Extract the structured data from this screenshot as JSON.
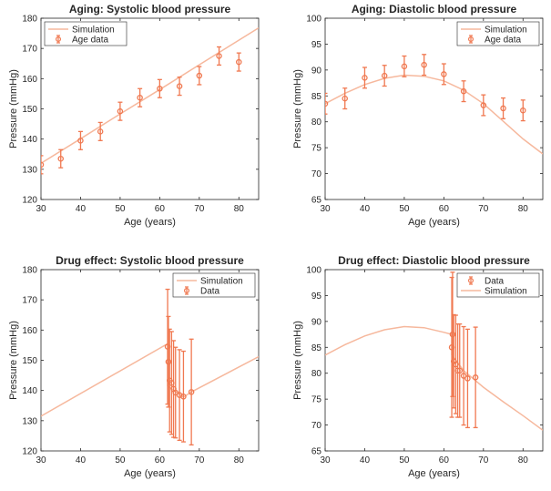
{
  "colors": {
    "simulation": "#f6b89d",
    "data": "#f07850",
    "axis": "#262626",
    "legend_border": "#262626"
  },
  "chart_data": [
    {
      "type": "line",
      "title": "Aging: Systolic blood pressure",
      "xlabel": "Age (years)",
      "ylabel": "Pressure (mmHg)",
      "xlim": [
        30,
        85
      ],
      "ylim": [
        120,
        180
      ],
      "xticks": [
        30,
        40,
        50,
        60,
        70,
        80
      ],
      "yticks": [
        120,
        130,
        140,
        150,
        160,
        170,
        180
      ],
      "grid": false,
      "legend": {
        "position": "top-left",
        "entries": [
          "Simulation",
          "Age data"
        ]
      },
      "simulation": {
        "name": "Simulation",
        "x": [
          30,
          40,
          50,
          60,
          70,
          85
        ],
        "y": [
          132,
          140.1,
          148.3,
          156.4,
          164.6,
          176.8
        ]
      },
      "data": {
        "name": "Age data",
        "x": [
          30,
          35,
          40,
          45,
          50,
          55,
          60,
          65,
          70,
          75,
          80
        ],
        "y": [
          131.5,
          133.5,
          139.5,
          142.5,
          149.2,
          153.7,
          156.7,
          157.5,
          161,
          167.5,
          165.5
        ],
        "err": [
          3,
          3,
          3,
          3,
          3,
          3,
          3,
          3,
          3,
          3,
          3
        ]
      }
    },
    {
      "type": "line",
      "title": "Aging: Diastolic blood pressure",
      "xlabel": "Age (years)",
      "ylabel": "Pressure (mmHg)",
      "xlim": [
        30,
        85
      ],
      "ylim": [
        65,
        100
      ],
      "xticks": [
        30,
        40,
        50,
        60,
        70,
        80
      ],
      "yticks": [
        65,
        70,
        75,
        80,
        85,
        90,
        95,
        100
      ],
      "grid": false,
      "legend": {
        "position": "top-right",
        "entries": [
          "Simulation",
          "Age data"
        ]
      },
      "simulation": {
        "name": "Simulation",
        "x": [
          30,
          35,
          40,
          45,
          50,
          55,
          60,
          65,
          70,
          75,
          80,
          85
        ],
        "y": [
          83.5,
          85.5,
          87.2,
          88.4,
          89,
          88.8,
          87.9,
          86.1,
          83.5,
          80.1,
          76.7,
          73.8
        ]
      },
      "data": {
        "name": "Age data",
        "x": [
          30,
          35,
          40,
          45,
          50,
          55,
          60,
          65,
          70,
          75,
          80
        ],
        "y": [
          83.5,
          84.5,
          88.5,
          88.9,
          90.7,
          91,
          89.2,
          85.9,
          83.2,
          82.6,
          82.2
        ],
        "err": [
          2,
          2,
          2,
          2,
          2,
          2,
          2,
          2,
          2,
          2,
          2
        ]
      }
    },
    {
      "type": "line",
      "title": "Drug effect: Systolic blood pressure",
      "xlabel": "Age (years)",
      "ylabel": "Pressure (mmHg)",
      "xlim": [
        30,
        85
      ],
      "ylim": [
        120,
        180
      ],
      "xticks": [
        30,
        40,
        50,
        60,
        70,
        80
      ],
      "yticks": [
        120,
        130,
        140,
        150,
        160,
        170,
        180
      ],
      "grid": false,
      "legend": {
        "position": "top-right",
        "entries": [
          "Simulation",
          "Data"
        ]
      },
      "simulation": {
        "name": "Simulation",
        "x": [
          30,
          62,
          62,
          66,
          68,
          85
        ],
        "y": [
          131.5,
          155.5,
          141.5,
          137.8,
          139.5,
          151.2
        ]
      },
      "data": {
        "name": "Data",
        "x": [
          62,
          62.2,
          62.5,
          63,
          63.5,
          64,
          65,
          66,
          68
        ],
        "y": [
          154.5,
          149.5,
          143.3,
          142.5,
          140.5,
          139.3,
          138.5,
          138,
          139.5
        ],
        "err": [
          19,
          15,
          17,
          17,
          16,
          15,
          15,
          15,
          17.5
        ]
      }
    },
    {
      "type": "line",
      "title": "Drug effect: Diastolic blood pressure",
      "xlabel": "Age (years)",
      "ylabel": "Pressure (mmHg)",
      "xlim": [
        30,
        85
      ],
      "ylim": [
        65,
        100
      ],
      "xticks": [
        30,
        40,
        50,
        60,
        70,
        80
      ],
      "yticks": [
        65,
        70,
        75,
        80,
        85,
        90,
        95,
        100
      ],
      "grid": false,
      "legend": {
        "position": "top-right",
        "entries": [
          "Data",
          "Simulation"
        ]
      },
      "simulation": {
        "name": "Simulation",
        "x": [
          30,
          35,
          40,
          45,
          50,
          55,
          60,
          62,
          62,
          65,
          70,
          75,
          80,
          85
        ],
        "y": [
          83.5,
          85.5,
          87.2,
          88.4,
          89,
          88.8,
          87.9,
          87.5,
          83.5,
          80.5,
          77.3,
          74.5,
          71.8,
          69
        ]
      },
      "data": {
        "name": "Data",
        "x": [
          62,
          62.2,
          62.5,
          63,
          63.5,
          64,
          65,
          66,
          68
        ],
        "y": [
          85,
          87.5,
          82.3,
          81.7,
          80.5,
          80.5,
          79.5,
          79,
          79.2
        ],
        "err": [
          13.5,
          12,
          9,
          9.5,
          9,
          9,
          9.5,
          9.5,
          9.7
        ]
      }
    }
  ]
}
